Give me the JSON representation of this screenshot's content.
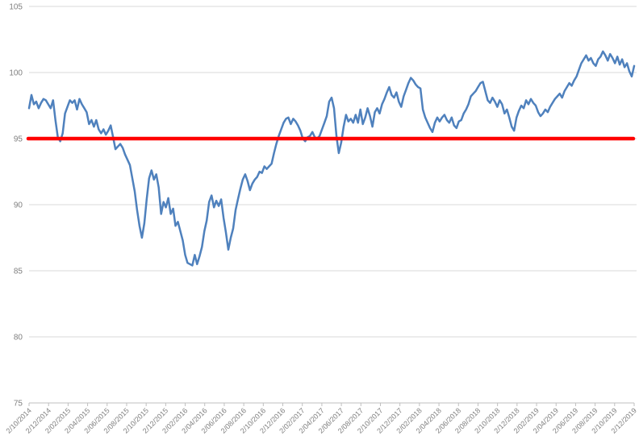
{
  "chart_data": {
    "type": "line",
    "title": "",
    "x_axis": {
      "labels": [
        "2/10/2014",
        "2/12/2014",
        "2/02/2015",
        "2/04/2015",
        "2/06/2015",
        "2/08/2015",
        "2/10/2015",
        "2/12/2015",
        "2/02/2016",
        "2/04/2016",
        "2/06/2016",
        "2/08/2016",
        "2/10/2016",
        "2/12/2016",
        "2/02/2017",
        "2/04/2017",
        "2/06/2017",
        "2/08/2017",
        "2/10/2017",
        "2/12/2017",
        "2/02/2018",
        "2/04/2018",
        "2/06/2018",
        "2/08/2018",
        "2/10/2018",
        "2/12/2018",
        "2/02/2019",
        "2/04/2019",
        "2/06/2019",
        "2/08/2019",
        "2/10/2019",
        "2/12/2019"
      ],
      "label_color": "#7f7f7f",
      "label_rotation_deg": -45
    },
    "y_axis": {
      "ticks": [
        105,
        100,
        95,
        90,
        85,
        80,
        75
      ],
      "min": 75,
      "max": 105,
      "label_color": "#7f7f7f"
    },
    "grid": {
      "gridline_color": "#d9d9d9",
      "axis_color": "#bfbfbf"
    },
    "series": [
      {
        "name": "blue-price-line",
        "color": "#4F81BD",
        "stroke_width": 2.5,
        "values": [
          97.3,
          98.3,
          97.6,
          97.8,
          97.3,
          97.7,
          98.0,
          97.9,
          97.6,
          97.3,
          97.9,
          96.4,
          95.1,
          94.8,
          95.4,
          96.9,
          97.4,
          97.9,
          97.7,
          97.9,
          97.2,
          98.0,
          97.6,
          97.3,
          97.0,
          96.1,
          96.4,
          95.9,
          96.4,
          95.7,
          95.4,
          95.7,
          95.3,
          95.6,
          96.0,
          95.1,
          94.2,
          94.4,
          94.6,
          94.3,
          93.8,
          93.4,
          93.0,
          92.0,
          91.0,
          89.6,
          88.4,
          87.5,
          88.6,
          90.4,
          92.0,
          92.6,
          91.9,
          92.3,
          91.3,
          89.3,
          90.2,
          89.8,
          90.5,
          89.3,
          89.7,
          88.4,
          88.7,
          88.0,
          87.3,
          86.2,
          85.6,
          85.5,
          85.4,
          86.2,
          85.5,
          86.1,
          86.8,
          88.0,
          88.8,
          90.2,
          90.7,
          89.8,
          90.3,
          89.9,
          90.4,
          89.0,
          87.9,
          86.6,
          87.5,
          88.2,
          89.6,
          90.4,
          91.2,
          91.9,
          92.3,
          91.8,
          91.1,
          91.6,
          91.9,
          92.1,
          92.5,
          92.4,
          92.9,
          92.7,
          92.9,
          93.1,
          93.9,
          94.6,
          95.2,
          95.7,
          96.2,
          96.5,
          96.6,
          96.1,
          96.5,
          96.3,
          96.0,
          95.6,
          95.0,
          94.8,
          95.1,
          95.2,
          95.5,
          95.1,
          95.0,
          95.2,
          95.7,
          96.2,
          96.7,
          97.8,
          98.1,
          97.3,
          95.2,
          93.9,
          94.7,
          95.9,
          96.8,
          96.3,
          96.5,
          96.2,
          96.8,
          96.2,
          97.2,
          96.1,
          96.6,
          97.3,
          96.7,
          95.9,
          97.0,
          97.3,
          96.9,
          97.6,
          98.0,
          98.5,
          98.9,
          98.3,
          98.1,
          98.5,
          97.8,
          97.4,
          98.2,
          98.7,
          99.2,
          99.6,
          99.4,
          99.1,
          98.9,
          98.8,
          97.2,
          96.6,
          96.2,
          95.8,
          95.5,
          96.2,
          96.6,
          96.3,
          96.6,
          96.8,
          96.4,
          96.2,
          96.6,
          96.0,
          95.8,
          96.3,
          96.4,
          96.9,
          97.2,
          97.6,
          98.2,
          98.4,
          98.6,
          98.9,
          99.2,
          99.3,
          98.6,
          97.9,
          97.7,
          98.1,
          97.8,
          97.4,
          97.9,
          97.6,
          96.9,
          97.2,
          96.6,
          95.9,
          95.6,
          96.6,
          97.1,
          97.5,
          97.3,
          97.9,
          97.6,
          98.0,
          97.7,
          97.5,
          97.0,
          96.7,
          96.9,
          97.2,
          97.0,
          97.4,
          97.7,
          98.0,
          98.2,
          98.4,
          98.1,
          98.6,
          98.9,
          99.2,
          99.0,
          99.4,
          99.7,
          100.2,
          100.7,
          101.0,
          101.3,
          100.9,
          101.1,
          100.7,
          100.5,
          101.0,
          101.2,
          101.6,
          101.3,
          100.9,
          101.4,
          101.1,
          100.7,
          101.2,
          100.6,
          101.0,
          100.4,
          100.7,
          100.1,
          99.7,
          100.5
        ]
      }
    ],
    "reference_line": {
      "name": "red-threshold-line",
      "value": 95,
      "color": "#FF0000",
      "stroke_width": 4.5
    }
  }
}
